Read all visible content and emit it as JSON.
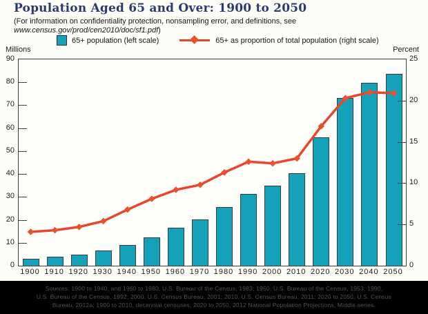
{
  "header": {
    "title": "Population Aged 65 and Over: 1900 to 2050",
    "subtitle_line1": "(For information on confidentiality protection, nonsampling error, and definitions, see",
    "subtitle_url": "www.census.gov/prod/cen2010/doc/sf1.pdf",
    "subtitle_close": ")"
  },
  "legend": {
    "bar_label": "65+ population (left scale)",
    "line_label": "65+ as proportion of total population (right scale)"
  },
  "axes": {
    "left_caption": "Millions",
    "right_caption": "Percent",
    "left_ticks": [
      0,
      10,
      20,
      30,
      40,
      50,
      60,
      70,
      80,
      90
    ],
    "right_ticks": [
      0,
      5,
      10,
      15,
      20,
      25
    ]
  },
  "chart_data": {
    "type": "bar",
    "title": "Population Aged 65 and Over: 1900 to 2050",
    "categories": [
      "1900",
      "1910",
      "1920",
      "1930",
      "1940",
      "1950",
      "1960",
      "1970",
      "1980",
      "1990",
      "2000",
      "2010",
      "2020",
      "2030",
      "2040",
      "2050"
    ],
    "series": [
      {
        "name": "65+ population (left scale)",
        "type": "bar",
        "axis": "left",
        "unit": "millions",
        "values": [
          3.1,
          3.9,
          4.9,
          6.6,
          9.0,
          12.3,
          16.6,
          20.1,
          25.5,
          31.2,
          35.0,
          40.3,
          56.0,
          73.1,
          79.7,
          83.7
        ]
      },
      {
        "name": "65+ as proportion of total population (right scale)",
        "type": "line",
        "axis": "right",
        "unit": "percent",
        "values": [
          4.1,
          4.3,
          4.7,
          5.4,
          6.8,
          8.1,
          9.2,
          9.8,
          11.3,
          12.6,
          12.4,
          13.0,
          16.9,
          20.3,
          21.0,
          20.9
        ]
      }
    ],
    "left_axis": {
      "label": "Millions",
      "range": [
        0,
        90
      ],
      "tick_step": 10
    },
    "right_axis": {
      "label": "Percent",
      "range": [
        0,
        25
      ],
      "tick_step": 5
    },
    "grid": false,
    "legend_position": "top"
  },
  "source_note": {
    "line1": "Sources: 1900 to 1940, and 1960 to 1980, U.S. Bureau of the Census, 1983; 1950, U.S. Bureau of the Census, 1953; 1990,",
    "line2": "U.S. Bureau of the Census, 1992; 2000, U.S. Census Bureau, 2001; 2010, U.S. Census Bureau, 2011; 2020 to 2050, U.S. Census",
    "line3": "Bureau, 2012a; 1900 to 2010, decennial censuses; 2020 to 2050, 2012 National Population Projections, Middle series."
  },
  "colors": {
    "bar_fill": "#14a1ba",
    "line": "#e8452c",
    "marker": "#e8532c",
    "title_text": "#2b3a72"
  }
}
